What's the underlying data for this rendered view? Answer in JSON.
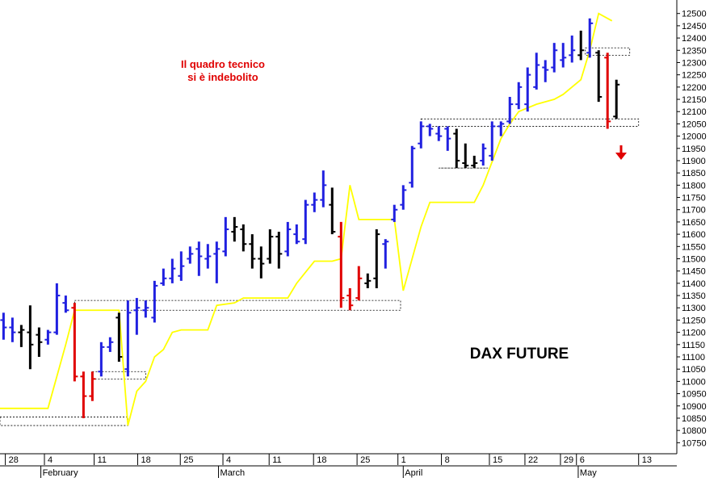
{
  "chart_data": {
    "type": "ohlc",
    "title": "DAX FUTURE",
    "annotation": "Il quadro tecnico\nsi è indebolito",
    "xlim": [
      -0.4,
      75.8
    ],
    "ylim": [
      10705,
      12555
    ],
    "yticks": [
      10750,
      10800,
      10850,
      10900,
      10950,
      11000,
      11050,
      11100,
      11150,
      11200,
      11250,
      11300,
      11350,
      11400,
      11450,
      11500,
      11550,
      11600,
      11650,
      11700,
      11750,
      11800,
      11850,
      11900,
      11950,
      12000,
      12050,
      12100,
      12150,
      12200,
      12250,
      12300,
      12350,
      12400,
      12450,
      12500
    ],
    "xticks": [
      {
        "value": 0.2,
        "label": "28"
      },
      {
        "value": 4.6,
        "label": "4"
      },
      {
        "value": 10.2,
        "label": "11"
      },
      {
        "value": 15.1,
        "label": "18"
      },
      {
        "value": 19.9,
        "label": "25"
      },
      {
        "value": 24.7,
        "label": "4"
      },
      {
        "value": 29.9,
        "label": "11"
      },
      {
        "value": 34.9,
        "label": "18"
      },
      {
        "value": 39.8,
        "label": "25"
      },
      {
        "value": 44.4,
        "label": "1"
      },
      {
        "value": 49.3,
        "label": "8"
      },
      {
        "value": 54.7,
        "label": "15"
      },
      {
        "value": 58.7,
        "label": "22"
      },
      {
        "value": 62.7,
        "label": "29"
      },
      {
        "value": 64.5,
        "label": "6"
      },
      {
        "value": 71.5,
        "label": "13"
      }
    ],
    "month_labels": [
      {
        "value": 4.2,
        "label": "February"
      },
      {
        "value": 24.2,
        "label": "March"
      },
      {
        "value": 45.0,
        "label": "April"
      },
      {
        "value": 64.7,
        "label": "May"
      }
    ],
    "x": [
      0,
      1,
      2,
      3,
      4,
      5,
      6,
      7,
      8,
      9,
      10,
      11,
      12,
      13,
      14,
      15,
      16,
      17,
      18,
      19,
      20,
      21,
      22,
      23,
      24,
      25,
      26,
      27,
      28,
      29,
      30,
      31,
      32,
      33,
      34,
      35,
      36,
      37,
      38,
      39,
      40,
      41,
      42,
      43,
      44,
      45,
      46,
      47,
      48,
      49,
      50,
      51,
      52,
      53,
      54,
      55,
      56,
      57,
      58,
      59,
      60,
      61,
      62,
      63,
      64,
      65,
      66,
      67,
      68,
      69
    ],
    "open": [
      11250,
      11220,
      11200,
      11200,
      11190,
      11170,
      11200,
      11320,
      11300,
      11020,
      10940,
      11040,
      11140,
      11260,
      11050,
      11290,
      11290,
      11260,
      11400,
      11420,
      11430,
      11500,
      11540,
      11500,
      11520,
      11530,
      11610,
      11620,
      11560,
      11500,
      11500,
      11590,
      11530,
      11600,
      11580,
      11720,
      11740,
      11720,
      11590,
      11350,
      11340,
      11400,
      11420,
      11560,
      11660,
      11720,
      11810,
      11970,
      12040,
      12010,
      12030,
      12010,
      11890,
      11880,
      11900,
      11920,
      12040,
      12060,
      12130,
      12130,
      12200,
      12280,
      12280,
      12310,
      12330,
      12330,
      12340,
      12340,
      12320,
      12080
    ],
    "high": [
      11280,
      11260,
      11230,
      11310,
      11220,
      11210,
      11400,
      11350,
      11320,
      11040,
      11040,
      11160,
      11180,
      11280,
      11330,
      11340,
      11330,
      11410,
      11460,
      11500,
      11530,
      11550,
      11570,
      11560,
      11570,
      11670,
      11670,
      11640,
      11600,
      11550,
      11620,
      11610,
      11650,
      11640,
      11740,
      11770,
      11860,
      11790,
      11650,
      11380,
      11470,
      11440,
      11620,
      11580,
      11720,
      11800,
      11960,
      12060,
      12050,
      12040,
      12040,
      12030,
      11970,
      11920,
      11970,
      12060,
      12060,
      12160,
      12220,
      12280,
      12340,
      12310,
      12380,
      12380,
      12410,
      12430,
      12480,
      12350,
      12340,
      12230
    ],
    "low": [
      11170,
      11160,
      11140,
      11050,
      11100,
      11150,
      11190,
      11280,
      11000,
      10850,
      10920,
      11020,
      11120,
      11080,
      11020,
      11190,
      11260,
      11240,
      11390,
      11400,
      11410,
      11480,
      11430,
      11460,
      11400,
      11510,
      11570,
      11530,
      11460,
      11420,
      11480,
      11460,
      11510,
      11560,
      11560,
      11690,
      11710,
      11600,
      11300,
      11290,
      11330,
      11380,
      11380,
      11460,
      11650,
      11700,
      11790,
      11950,
      12000,
      11980,
      11940,
      11870,
      11870,
      11870,
      11880,
      11900,
      12000,
      12050,
      12110,
      12100,
      12190,
      12220,
      12260,
      12280,
      12300,
      12310,
      12320,
      12140,
      12030,
      12070
    ],
    "close": [
      11220,
      11200,
      11210,
      11150,
      11160,
      11200,
      11350,
      11290,
      11020,
      10940,
      11010,
      11140,
      11160,
      11100,
      11280,
      11300,
      11300,
      11390,
      11420,
      11460,
      11470,
      11520,
      11510,
      11510,
      11540,
      11620,
      11630,
      11560,
      11500,
      11480,
      11590,
      11520,
      11620,
      11570,
      11720,
      11740,
      11800,
      11610,
      11340,
      11310,
      11420,
      11410,
      11600,
      11570,
      11700,
      11780,
      11950,
      12040,
      12030,
      12000,
      11990,
      11900,
      11880,
      11890,
      11950,
      12040,
      12050,
      12130,
      12200,
      12250,
      12290,
      12270,
      12350,
      12320,
      12350,
      12350,
      12460,
      12160,
      12060,
      12210
    ],
    "colors": [
      "#2020e0",
      "#2020e0",
      "#000000",
      "#000000",
      "#000000",
      "#2020e0",
      "#2020e0",
      "#2020e0",
      "#e00000",
      "#e00000",
      "#e00000",
      "#2020e0",
      "#2020e0",
      "#000000",
      "#2020e0",
      "#2020e0",
      "#2020e0",
      "#2020e0",
      "#2020e0",
      "#2020e0",
      "#2020e0",
      "#2020e0",
      "#2020e0",
      "#2020e0",
      "#2020e0",
      "#2020e0",
      "#000000",
      "#000000",
      "#000000",
      "#000000",
      "#000000",
      "#000000",
      "#2020e0",
      "#2020e0",
      "#2020e0",
      "#2020e0",
      "#2020e0",
      "#000000",
      "#e00000",
      "#e00000",
      "#e00000",
      "#000000",
      "#000000",
      "#2020e0",
      "#2020e0",
      "#2020e0",
      "#2020e0",
      "#2020e0",
      "#2020e0",
      "#2020e0",
      "#2020e0",
      "#000000",
      "#000000",
      "#000000",
      "#2020e0",
      "#2020e0",
      "#2020e0",
      "#2020e0",
      "#2020e0",
      "#2020e0",
      "#2020e0",
      "#2020e0",
      "#2020e0",
      "#2020e0",
      "#2020e0",
      "#000000",
      "#2020e0",
      "#000000",
      "#e00000",
      "#000000"
    ],
    "line": {
      "color": "#ffff00",
      "x": [
        -0.4,
        5,
        7,
        8,
        13,
        14,
        15,
        16,
        17,
        18,
        19,
        20,
        23,
        24,
        26,
        27,
        32,
        33,
        35,
        37,
        38,
        39,
        40,
        44,
        45,
        46,
        47,
        48,
        53,
        54,
        56,
        57,
        58,
        60,
        62,
        63,
        64,
        65,
        66,
        67,
        68.5
      ],
      "values": [
        10890,
        10890,
        11150,
        11290,
        11290,
        10820,
        10960,
        11000,
        11100,
        11130,
        11200,
        11210,
        11210,
        11310,
        11320,
        11340,
        11340,
        11400,
        11490,
        11490,
        11500,
        11800,
        11660,
        11660,
        11370,
        11500,
        11630,
        11730,
        11730,
        11800,
        11990,
        12050,
        12100,
        12130,
        12150,
        12170,
        12200,
        12230,
        12350,
        12500,
        12470
      ]
    },
    "zones": [
      {
        "x": [
          -0.4,
          14
        ],
        "y": [
          10820,
          10855
        ]
      },
      {
        "x": [
          8,
          44.7
        ],
        "y": [
          11290,
          11330
        ]
      },
      {
        "x": [
          10,
          16
        ],
        "y": [
          11010,
          11040
        ]
      },
      {
        "x": [
          47,
          71.5
        ],
        "y": [
          12040,
          12070
        ]
      },
      {
        "x": [
          49,
          54.5
        ],
        "y": [
          11870,
          11870
        ]
      },
      {
        "x": [
          65.5,
          70.5
        ],
        "y": [
          12330,
          12360
        ]
      }
    ]
  }
}
